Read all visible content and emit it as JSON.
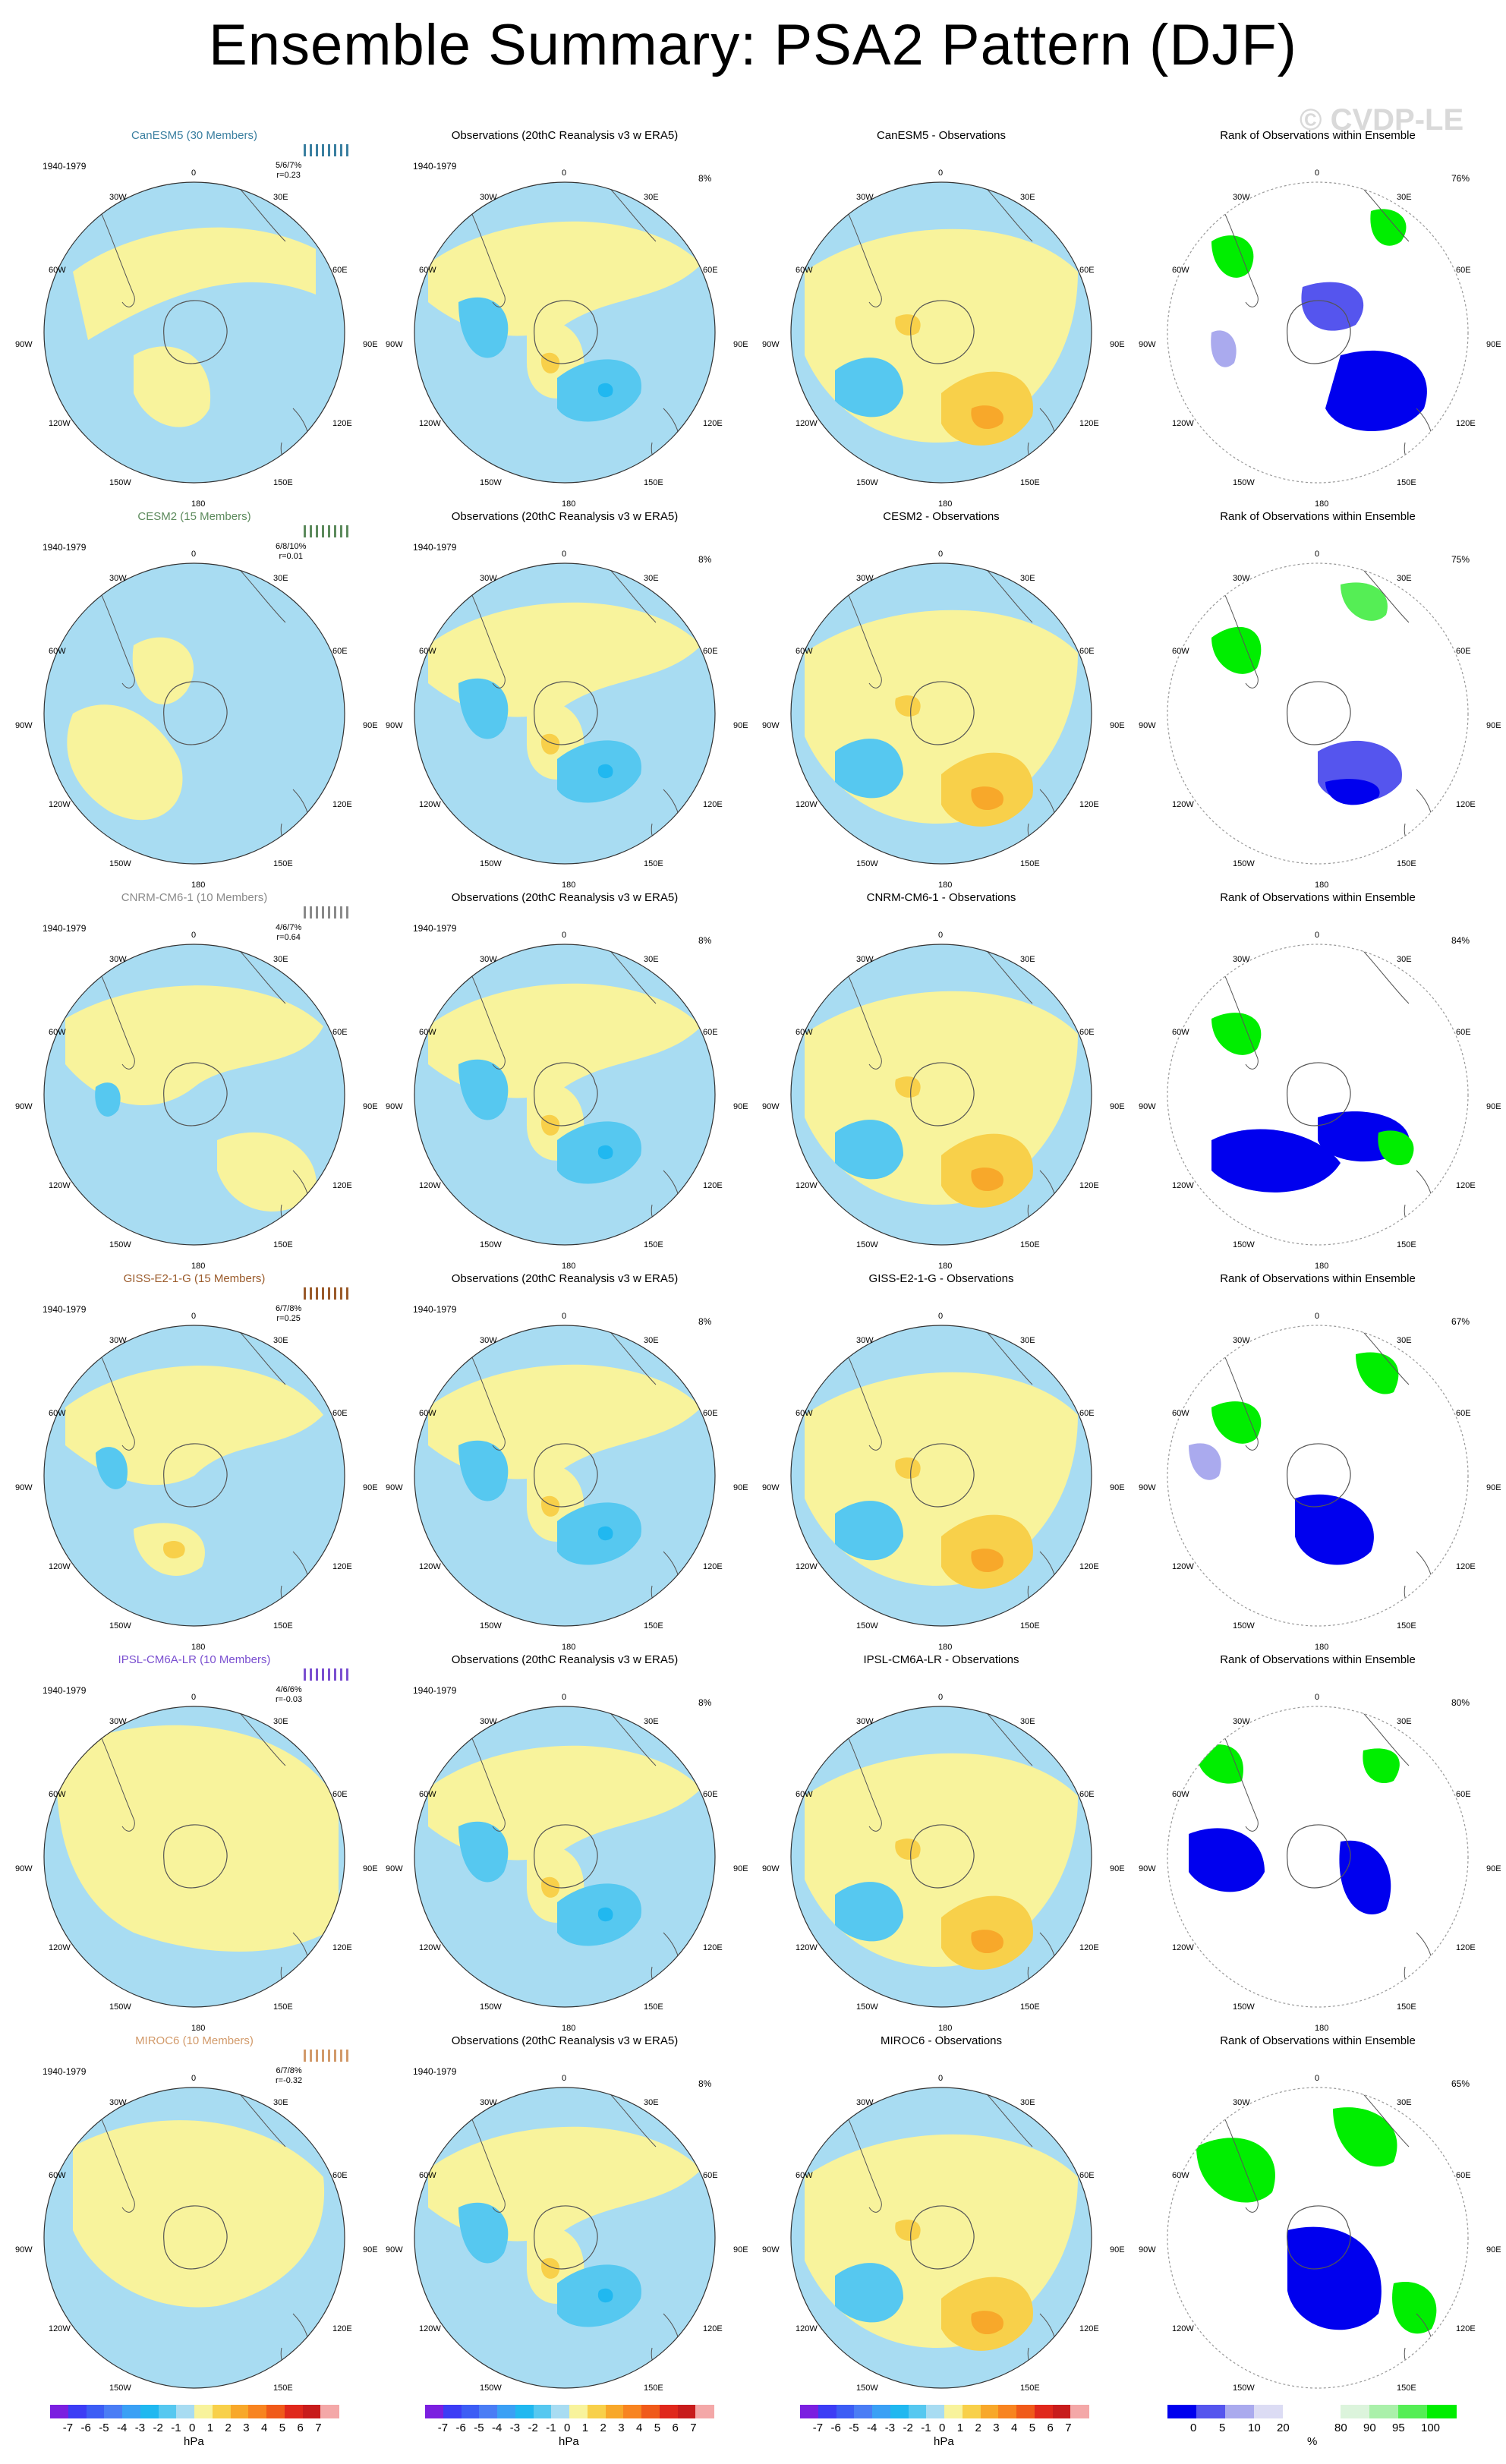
{
  "title": "Ensemble Summary: PSA2 Pattern (DJF)",
  "watermark": "© CVDP-LE",
  "obs_title": "Observations (20thC Reanalysis v3 w ERA5)",
  "rank_title": "Rank of Observations within Ensemble",
  "period": "1940-1979",
  "obs_pct": "8%",
  "lon_labels": [
    "0",
    "30E",
    "60E",
    "90E",
    "120E",
    "150E",
    "180",
    "150W",
    "120W",
    "90W",
    "60W",
    "30W"
  ],
  "colors": {
    "model_text": [
      "#3a7fa0",
      "#5c8a5c",
      "#8a8a8a",
      "#9a5a2a",
      "#7a4fd0",
      "#d29a6a"
    ],
    "anom": [
      "#7b1fe0",
      "#3c3cf5",
      "#3c5df5",
      "#4a7df5",
      "#3aa0f5",
      "#20b8f0",
      "#56c8f0",
      "#a8dcf2",
      "#f8f39c",
      "#f8d04a",
      "#f8a82a",
      "#f88420",
      "#f05a1a",
      "#e0281c",
      "#c81c1c",
      "#f4a8a8"
    ],
    "rank": [
      "#0000ee",
      "#5555ee",
      "#aaaaee",
      "#dcdcf4",
      "#ffffff",
      "#ffffff",
      "#dcf4dc",
      "#aaf0aa",
      "#55ee55",
      "#00ee00"
    ],
    "ocean_neg": "#a8dcf2",
    "land_pos": "#f8f39c"
  },
  "colorbar": {
    "anom_labels": [
      "-7",
      "-6",
      "-5",
      "-4",
      "-3",
      "-2",
      "-1",
      "0",
      "1",
      "2",
      "3",
      "4",
      "5",
      "6",
      "7"
    ],
    "anom_unit": "hPa",
    "rank_labels": [
      "0",
      "5",
      "10",
      "20",
      "80",
      "90",
      "95",
      "100"
    ],
    "rank_unit": "%"
  },
  "rows": [
    {
      "model": "CanESM5 (30 Members)",
      "diff_title": "CanESM5 - Observations",
      "stats": "5/6/7%",
      "r": "r=0.23",
      "rank_pct": "76%"
    },
    {
      "model": "CESM2 (15 Members)",
      "diff_title": "CESM2 - Observations",
      "stats": "6/8/10%",
      "r": "r=0.01",
      "rank_pct": "75%"
    },
    {
      "model": "CNRM-CM6-1 (10 Members)",
      "diff_title": "CNRM-CM6-1 - Observations",
      "stats": "4/6/7%",
      "r": "r=0.64",
      "rank_pct": "84%"
    },
    {
      "model": "GISS-E2-1-G (15 Members)",
      "diff_title": "GISS-E2-1-G - Observations",
      "stats": "6/7/8%",
      "r": "r=0.25",
      "rank_pct": "67%"
    },
    {
      "model": "IPSL-CM6A-LR (10 Members)",
      "diff_title": "IPSL-CM6A-LR - Observations",
      "stats": "4/6/6%",
      "r": "r=-0.03",
      "rank_pct": "80%"
    },
    {
      "model": "MIROC6 (10 Members)",
      "diff_title": "MIROC6 - Observations",
      "stats": "6/7/8%",
      "r": "r=-0.32",
      "rank_pct": "65%"
    }
  ]
}
